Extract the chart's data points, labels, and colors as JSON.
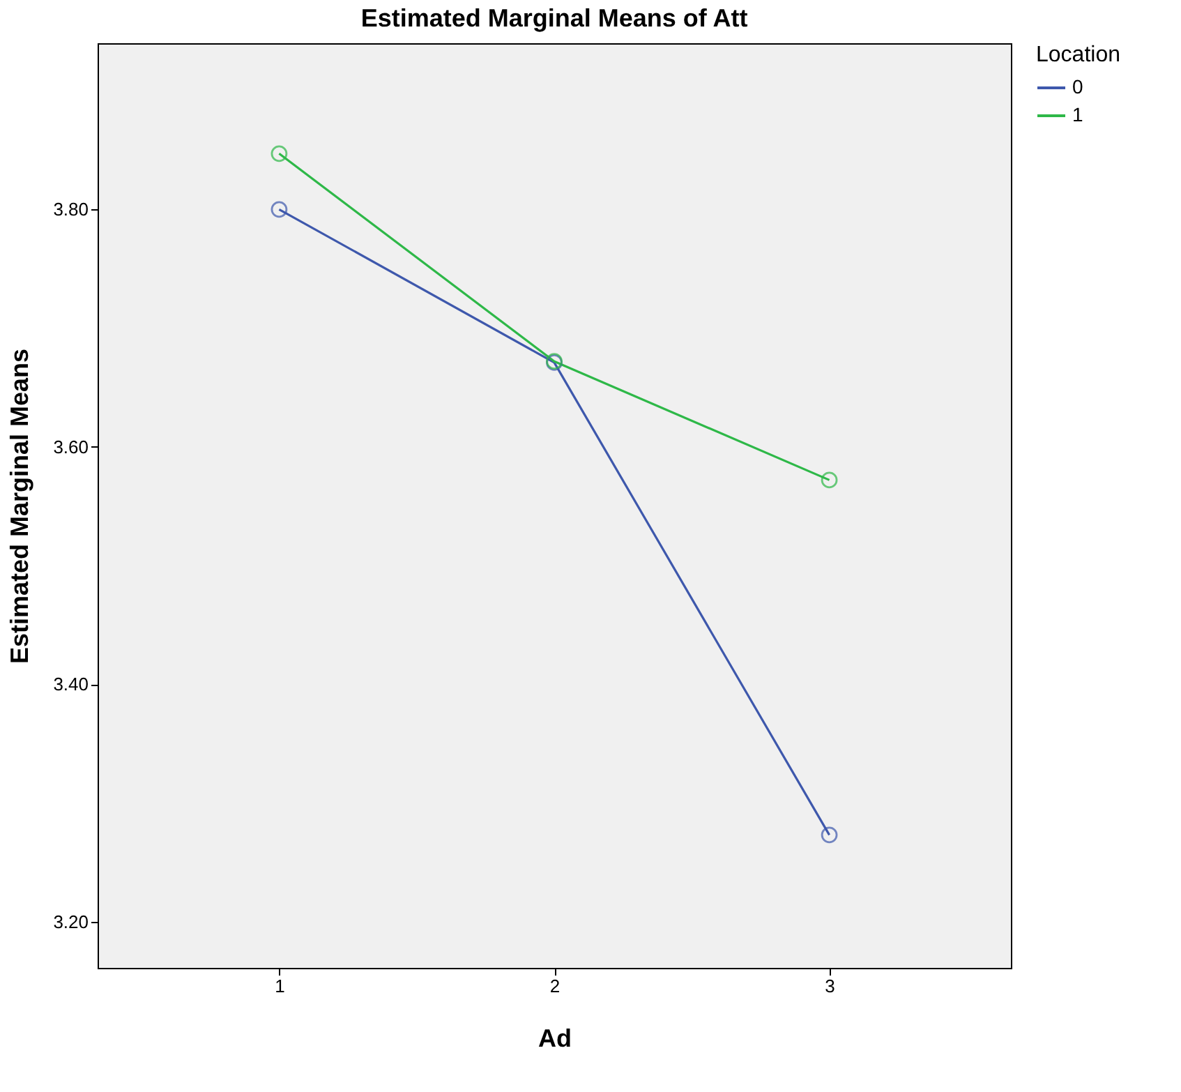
{
  "chart_data": {
    "type": "line",
    "title": "Estimated Marginal Means of Att",
    "xlabel": "Ad",
    "ylabel": "Estimated Marginal Means",
    "legend_title": "Location",
    "categories": [
      "1",
      "2",
      "3"
    ],
    "series": [
      {
        "name": "0",
        "color": "#3e58ac",
        "values": [
          3.8,
          3.671,
          3.273
        ]
      },
      {
        "name": "1",
        "color": "#2eb848",
        "values": [
          3.847,
          3.672,
          3.572
        ]
      }
    ],
    "ylim": [
      3.161,
      3.94
    ],
    "yticks": [
      {
        "value": 3.2,
        "label": "3.20"
      },
      {
        "value": 3.4,
        "label": "3.40"
      },
      {
        "value": 3.6,
        "label": "3.60"
      },
      {
        "value": 3.8,
        "label": "3.80"
      }
    ],
    "grid": false,
    "legend": "top right",
    "marker": "circle",
    "line_style": "solid"
  }
}
